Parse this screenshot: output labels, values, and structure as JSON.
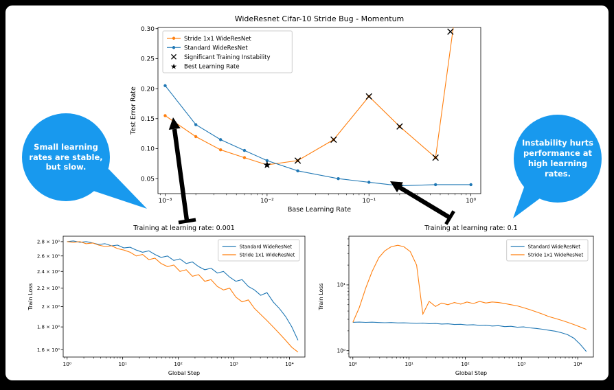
{
  "colors": {
    "blue": "#1f77b4",
    "orange": "#ff7f0e",
    "bubble": "#1899ee",
    "annotation": "#000000",
    "slide_bg": "#ffffff",
    "frame_bg": "#000000"
  },
  "callouts": {
    "left": {
      "text": "Small learning rates are stable, but slow."
    },
    "right": {
      "text": "Instability hurts performance at high learning rates."
    }
  },
  "chart_data": [
    {
      "type": "line",
      "title": "WideResnet Cifar-10 Stride Bug - Momentum",
      "xlabel": "Base Learning Rate",
      "ylabel": "Test Error Rate",
      "xscale": "log",
      "yscale": "linear",
      "xlim": [
        0.00085,
        1.25
      ],
      "ylim": [
        0.025,
        0.302
      ],
      "xticks": [
        {
          "v": 0.001,
          "label": "10⁻³"
        },
        {
          "v": 0.01,
          "label": "10⁻²"
        },
        {
          "v": 0.1,
          "label": "10⁻¹"
        },
        {
          "v": 1,
          "label": "10⁰"
        }
      ],
      "yticks": [
        {
          "v": 0.05,
          "label": "0.05"
        },
        {
          "v": 0.1,
          "label": "0.10"
        },
        {
          "v": 0.15,
          "label": "0.15"
        },
        {
          "v": 0.2,
          "label": "0.20"
        },
        {
          "v": 0.25,
          "label": "0.25"
        },
        {
          "v": 0.3,
          "label": "0.30"
        }
      ],
      "series": [
        {
          "name": "Stride 1x1 WideResNet",
          "color": "#ff7f0e",
          "marker": "dot",
          "x": [
            0.001,
            0.002,
            0.0035,
            0.006,
            0.01,
            0.02,
            0.045,
            0.1,
            0.2,
            0.45,
            0.72
          ],
          "y": [
            0.155,
            0.12,
            0.098,
            0.085,
            0.073,
            0.08,
            0.115,
            0.187,
            0.137,
            0.085,
            0.34
          ]
        },
        {
          "name": "Standard WideResNet",
          "color": "#1f77b4",
          "marker": "dot",
          "x": [
            0.001,
            0.002,
            0.0035,
            0.006,
            0.01,
            0.02,
            0.05,
            0.1,
            0.2,
            0.45,
            1.0
          ],
          "y": [
            0.205,
            0.14,
            0.115,
            0.097,
            0.08,
            0.063,
            0.05,
            0.044,
            0.038,
            0.04,
            0.04
          ]
        }
      ],
      "annotations": [
        {
          "name": "Significant Training Instability",
          "marker": "x",
          "color": "#000000",
          "x": [
            0.02,
            0.045,
            0.1,
            0.2,
            0.45,
            0.63
          ],
          "y": [
            0.08,
            0.115,
            0.187,
            0.137,
            0.085,
            0.295
          ]
        },
        {
          "name": "Best Learning Rate (Stride 1x1)",
          "marker": "star",
          "color": "#ff7f0e",
          "x": [
            0.01
          ],
          "y": [
            0.073
          ]
        },
        {
          "name": "Best Learning Rate (Standard)",
          "marker": "star",
          "color": "#1f77b4",
          "x": [
            0.2
          ],
          "y": [
            0.038
          ]
        }
      ],
      "legend": {
        "position": "top-left",
        "entries": [
          {
            "label": "Stride 1x1 WideResNet",
            "color": "#ff7f0e",
            "line": true,
            "marker": "dot"
          },
          {
            "label": "Standard WideResNet",
            "color": "#1f77b4",
            "line": true,
            "marker": "dot"
          },
          {
            "label": "Significant Training Instability",
            "color": "#000000",
            "line": false,
            "marker": "x"
          },
          {
            "label": "Best Learning Rate",
            "color": "#000000",
            "line": false,
            "marker": "star"
          }
        ]
      }
    },
    {
      "type": "line",
      "title": "Training at learning rate: 0.001",
      "xlabel": "Global Step",
      "ylabel": "Train Loss",
      "xscale": "log",
      "yscale": "log",
      "xlim": [
        0.85,
        19000
      ],
      "ylim": [
        1.54,
        2.88
      ],
      "xticks": [
        {
          "v": 1,
          "label": "10⁰"
        },
        {
          "v": 10,
          "label": "10¹"
        },
        {
          "v": 100,
          "label": "10²"
        },
        {
          "v": 1000,
          "label": "10³"
        },
        {
          "v": 10000,
          "label": "10⁴"
        }
      ],
      "yticks": [
        {
          "v": 1.6,
          "label": "1.6 × 10⁰"
        },
        {
          "v": 1.8,
          "label": "1.8 × 10⁰"
        },
        {
          "v": 2.0,
          "label": "2 × 10⁰"
        },
        {
          "v": 2.2,
          "label": "2.2 × 10⁰"
        },
        {
          "v": 2.4,
          "label": "2.4 × 10⁰"
        },
        {
          "v": 2.6,
          "label": "2.6 × 10⁰"
        },
        {
          "v": 2.8,
          "label": "2.8 × 10⁰"
        }
      ],
      "x": [
        1,
        1.3,
        1.7,
        2.2,
        2.9,
        3.7,
        4.8,
        6.3,
        8.1,
        10.5,
        13.6,
        17.6,
        22.8,
        29.5,
        38,
        49,
        64,
        83,
        107,
        139,
        180,
        232,
        300,
        389,
        503,
        650,
        841,
        1088,
        1407,
        1820,
        2354,
        3045,
        3939,
        5094,
        6590,
        8524,
        11025,
        14262
      ],
      "series": [
        {
          "name": "Standard WideResNet",
          "color": "#1f77b4",
          "y": [
            2.8,
            2.81,
            2.79,
            2.8,
            2.78,
            2.76,
            2.77,
            2.74,
            2.75,
            2.71,
            2.72,
            2.68,
            2.65,
            2.67,
            2.62,
            2.58,
            2.6,
            2.54,
            2.56,
            2.5,
            2.52,
            2.46,
            2.42,
            2.44,
            2.38,
            2.4,
            2.33,
            2.28,
            2.3,
            2.22,
            2.18,
            2.12,
            2.15,
            2.05,
            1.98,
            1.9,
            1.8,
            1.68
          ]
        },
        {
          "name": "Stride 1x1 WideResNet",
          "color": "#ff7f0e",
          "y": [
            2.8,
            2.79,
            2.8,
            2.77,
            2.78,
            2.75,
            2.73,
            2.74,
            2.7,
            2.68,
            2.65,
            2.6,
            2.62,
            2.55,
            2.57,
            2.5,
            2.46,
            2.48,
            2.4,
            2.42,
            2.34,
            2.36,
            2.28,
            2.3,
            2.22,
            2.18,
            2.2,
            2.1,
            2.05,
            2.07,
            1.98,
            1.92,
            1.86,
            1.8,
            1.74,
            1.68,
            1.62,
            1.58
          ]
        }
      ],
      "legend": {
        "position": "top-right",
        "entries": [
          {
            "label": "Standard WideResNet",
            "color": "#1f77b4",
            "line": true
          },
          {
            "label": "Stride 1x1 WideResNet",
            "color": "#ff7f0e",
            "line": true
          }
        ]
      }
    },
    {
      "type": "line",
      "title": "Training at learning rate: 0.1",
      "xlabel": "Global Step",
      "ylabel": "Train Loss",
      "xscale": "log",
      "yscale": "log",
      "minor_y": true,
      "xlim": [
        0.85,
        19000
      ],
      "ylim": [
        0.8,
        55
      ],
      "xticks": [
        {
          "v": 1,
          "label": "10⁰"
        },
        {
          "v": 10,
          "label": "10¹"
        },
        {
          "v": 100,
          "label": "10²"
        },
        {
          "v": 1000,
          "label": "10³"
        },
        {
          "v": 10000,
          "label": "10⁴"
        }
      ],
      "yticks": [
        {
          "v": 1,
          "label": "10⁰"
        },
        {
          "v": 10,
          "label": "10¹"
        }
      ],
      "x": [
        1,
        1.3,
        1.7,
        2.2,
        2.9,
        3.7,
        4.8,
        6.3,
        8.1,
        10.5,
        13.6,
        17.6,
        22.8,
        29.5,
        38,
        49,
        64,
        83,
        107,
        139,
        180,
        232,
        300,
        389,
        503,
        650,
        841,
        1088,
        1407,
        1820,
        2354,
        3045,
        3939,
        5094,
        6590,
        8524,
        11025,
        14262
      ],
      "series": [
        {
          "name": "Standard WideResNet",
          "color": "#1f77b4",
          "y": [
            2.7,
            2.72,
            2.69,
            2.71,
            2.68,
            2.66,
            2.68,
            2.64,
            2.65,
            2.62,
            2.6,
            2.62,
            2.57,
            2.59,
            2.54,
            2.56,
            2.5,
            2.52,
            2.46,
            2.48,
            2.42,
            2.44,
            2.37,
            2.4,
            2.32,
            2.35,
            2.27,
            2.3,
            2.22,
            2.18,
            2.12,
            2.05,
            1.98,
            1.88,
            1.75,
            1.55,
            1.25,
            0.97
          ]
        },
        {
          "name": "Stride 1x1 WideResNet",
          "color": "#ff7f0e",
          "y": [
            2.7,
            4.5,
            9,
            16,
            26,
            33,
            38,
            40,
            38,
            32,
            20,
            3.6,
            5.6,
            4.7,
            5.3,
            5.0,
            5.4,
            5.1,
            5.5,
            5.2,
            5.6,
            5.3,
            5.5,
            5.4,
            5.2,
            5.0,
            4.8,
            4.5,
            4.2,
            3.9,
            3.6,
            3.3,
            3.1,
            2.9,
            2.7,
            2.5,
            2.3,
            2.1
          ]
        }
      ],
      "legend": {
        "position": "top-right",
        "entries": [
          {
            "label": "Standard WideResNet",
            "color": "#1f77b4",
            "line": true
          },
          {
            "label": "Stride 1x1 WideResNet",
            "color": "#ff7f0e",
            "line": true
          }
        ]
      }
    }
  ]
}
